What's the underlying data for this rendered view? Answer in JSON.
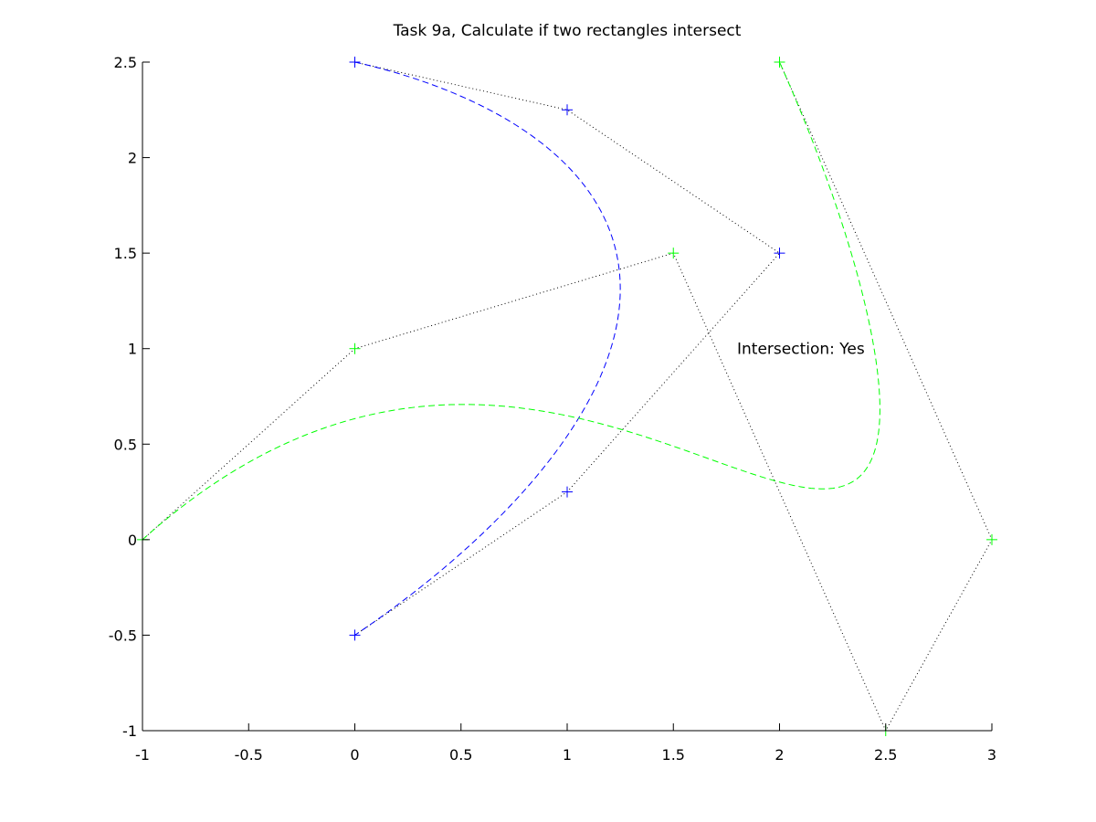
{
  "chart_data": {
    "type": "line",
    "title": "Task 9a, Calculate if two rectangles intersect",
    "xlabel": "",
    "ylabel": "",
    "xlim": [
      -1,
      3
    ],
    "ylim": [
      -1,
      2.5
    ],
    "xticks": [
      -1,
      -0.5,
      0,
      0.5,
      1,
      1.5,
      2,
      2.5,
      3
    ],
    "yticks": [
      -1,
      -0.5,
      0,
      0.5,
      1,
      1.5,
      2,
      2.5
    ],
    "xtick_labels": [
      "-1",
      "-0.5",
      "0",
      "0.5",
      "1",
      "1.5",
      "2",
      "2.5",
      "3"
    ],
    "ytick_labels": [
      "-1",
      "-0.5",
      "0",
      "0.5",
      "1",
      "1.5",
      "2",
      "2.5"
    ],
    "grid": false,
    "annotation": {
      "text": "Intersection: Yes",
      "x": 1.8,
      "y": 1.0
    },
    "series": [
      {
        "style": "control-polygon",
        "color": "#0000ff",
        "marker": "+",
        "x": [
          0,
          1,
          2,
          1,
          0
        ],
        "y": [
          2.5,
          2.25,
          1.5,
          0.25,
          -0.5
        ]
      },
      {
        "style": "bezier-curve",
        "color": "#0000ff",
        "control_x": [
          0,
          1,
          2,
          1,
          0
        ],
        "control_y": [
          2.5,
          2.25,
          1.5,
          0.25,
          -0.5
        ]
      },
      {
        "style": "control-polygon",
        "color": "#00ff00",
        "marker": "+",
        "x": [
          -1,
          0,
          1.5,
          2.5,
          3,
          2
        ],
        "y": [
          0,
          1,
          1.5,
          -1,
          0,
          2.5
        ]
      },
      {
        "style": "bezier-curve",
        "color": "#00ff00",
        "control_x": [
          -1,
          0,
          1.5,
          2.5,
          3,
          2
        ],
        "control_y": [
          0,
          1,
          1.5,
          -1,
          0,
          2.5
        ]
      }
    ]
  }
}
